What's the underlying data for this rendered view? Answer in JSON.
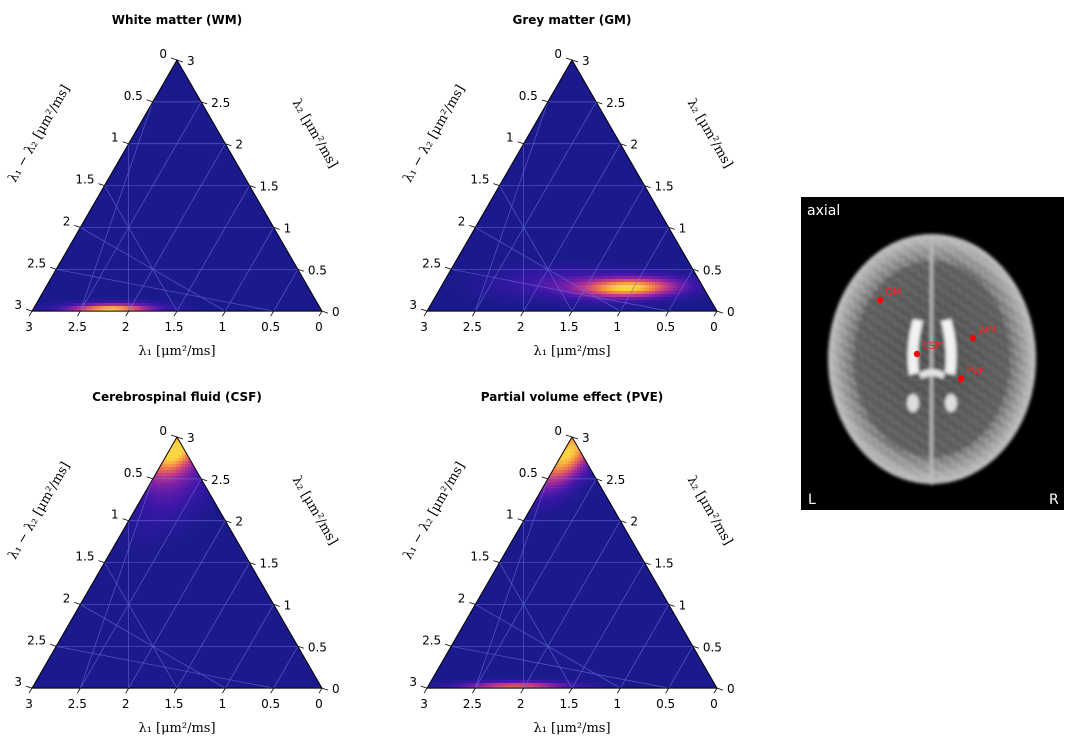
{
  "chart_data": [
    {
      "type": "heatmap",
      "subtype": "ternary",
      "title": "White matter (WM)",
      "left_axis_label": "λ₁ − λ₂ [μm²/ms]",
      "right_axis_label": "λ₂ [μm²/ms]",
      "bottom_axis_label": "λ₁ [μm²/ms]",
      "left_ticks": [
        "0",
        "0.5",
        "1",
        "1.5",
        "2",
        "2.5",
        "3"
      ],
      "right_ticks": [
        "3",
        "2.5",
        "2",
        "1.5",
        "1",
        "0.5",
        "0"
      ],
      "bottom_ticks": [
        "3",
        "2.5",
        "2",
        "1.5",
        "1",
        "0.5",
        "0"
      ],
      "range": [
        0,
        3
      ],
      "grid": true,
      "peaks": [
        {
          "lambda1": 2.2,
          "lambda2": 0.02,
          "sigma_l1": 0.32,
          "sigma_l2": 0.05,
          "intensity": 1.0
        }
      ]
    },
    {
      "type": "heatmap",
      "subtype": "ternary",
      "title": "Grey matter (GM)",
      "left_axis_label": "λ₁ − λ₂ [μm²/ms]",
      "right_axis_label": "λ₂ [μm²/ms]",
      "bottom_axis_label": "λ₁ [μm²/ms]",
      "left_ticks": [
        "0",
        "0.5",
        "1",
        "1.5",
        "2",
        "2.5",
        "3"
      ],
      "right_ticks": [
        "3",
        "2.5",
        "2",
        "1.5",
        "1",
        "0.5",
        "0"
      ],
      "bottom_ticks": [
        "3",
        "2.5",
        "2",
        "1.5",
        "1",
        "0.5",
        "0"
      ],
      "range": [
        0,
        3
      ],
      "grid": true,
      "peaks": [
        {
          "lambda1": 1.05,
          "lambda2": 0.28,
          "sigma_l1": 0.38,
          "sigma_l2": 0.09,
          "intensity": 1.0
        },
        {
          "lambda1": 1.9,
          "lambda2": 0.35,
          "sigma_l1": 0.45,
          "sigma_l2": 0.12,
          "intensity": 0.22
        },
        {
          "lambda1": 0.6,
          "lambda2": 2.0,
          "sigma_l1": 0.35,
          "sigma_l2": 0.5,
          "intensity": 0.12
        }
      ]
    },
    {
      "type": "heatmap",
      "subtype": "ternary",
      "title": "Cerebrospinal fluid (CSF)",
      "left_axis_label": "λ₁ − λ₂ [μm²/ms]",
      "right_axis_label": "λ₂ [μm²/ms]",
      "bottom_axis_label": "λ₁ [μm²/ms]",
      "left_ticks": [
        "0",
        "0.5",
        "1",
        "1.5",
        "2",
        "2.5",
        "3"
      ],
      "right_ticks": [
        "3",
        "2.5",
        "2",
        "1.5",
        "1",
        "0.5",
        "0"
      ],
      "bottom_ticks": [
        "3",
        "2.5",
        "2",
        "1.5",
        "1",
        "0.5",
        "0"
      ],
      "range": [
        0,
        3
      ],
      "grid": true,
      "peaks": [
        {
          "lambda1": 2.95,
          "lambda2": 2.85,
          "sigma_l1": 0.2,
          "sigma_l2": 0.25,
          "intensity": 1.0
        },
        {
          "lambda1": 2.7,
          "lambda2": 2.4,
          "sigma_l1": 0.25,
          "sigma_l2": 0.35,
          "intensity": 0.25
        }
      ]
    },
    {
      "type": "heatmap",
      "subtype": "ternary",
      "title": "Partial volume effect (PVE)",
      "left_axis_label": "λ₁ − λ₂ [μm²/ms]",
      "right_axis_label": "λ₂ [μm²/ms]",
      "bottom_axis_label": "λ₁ [μm²/ms]",
      "left_ticks": [
        "0",
        "0.5",
        "1",
        "1.5",
        "2",
        "2.5",
        "3"
      ],
      "right_ticks": [
        "3",
        "2.5",
        "2",
        "1.5",
        "1",
        "0.5",
        "0"
      ],
      "bottom_ticks": [
        "3",
        "2.5",
        "2",
        "1.5",
        "1",
        "0.5",
        "0"
      ],
      "range": [
        0,
        3
      ],
      "grid": true,
      "peaks": [
        {
          "lambda1": 2.95,
          "lambda2": 2.8,
          "sigma_l1": 0.2,
          "sigma_l2": 0.3,
          "intensity": 1.0
        },
        {
          "lambda1": 2.1,
          "lambda2": 0.02,
          "sigma_l1": 0.4,
          "sigma_l2": 0.04,
          "intensity": 0.75
        }
      ]
    }
  ],
  "colormap": [
    "#1a1a8c",
    "#3b17a8",
    "#7a1fa8",
    "#c23a88",
    "#f07a4a",
    "#fbd640"
  ],
  "mri": {
    "view_label": "axial",
    "left_label": "L",
    "right_label": "R",
    "marker_color": "#ff0000",
    "markers": [
      {
        "label": "GM"
      },
      {
        "label": "WM"
      },
      {
        "label": "CSF"
      },
      {
        "label": "PVE"
      }
    ]
  }
}
